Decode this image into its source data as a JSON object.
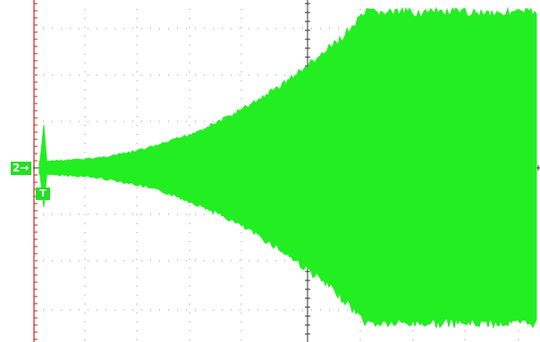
{
  "oscilloscope": {
    "channel_marker": "2→",
    "trigger_marker": "T",
    "trace_color": "#22ee22",
    "grid_color": "#9a9a9a",
    "left_ruler_color": "#cc2222",
    "background_color": "#ffffff",
    "signal_shape": "amplitude-growing-then-saturated"
  }
}
